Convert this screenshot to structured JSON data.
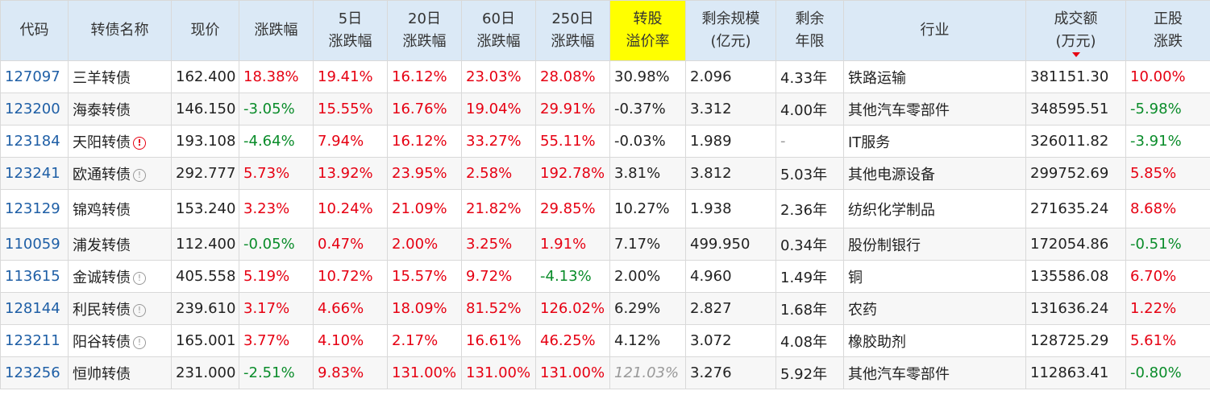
{
  "colors": {
    "up": "#e60012",
    "down": "#0a8c2a",
    "header_bg": "#dbe9f6",
    "highlight": "#ffff00",
    "code": "#1f5fa6"
  },
  "headers": [
    "代码",
    "转债名称",
    "现价",
    "涨跌幅",
    "5日\n涨跌幅",
    "20日\n涨跌幅",
    "60日\n涨跌幅",
    "250日\n涨跌幅",
    "转股\n溢价率",
    "剩余规模\n(亿元)",
    "剩余\n年限",
    "行业",
    "成交额\n(万元)",
    "正股\n涨跌"
  ],
  "rows": [
    {
      "code": "127097",
      "name": "三羊转债",
      "icon": "",
      "price": "162.400",
      "chg": "18.38%",
      "d5": "19.41%",
      "d20": "16.12%",
      "d60": "23.03%",
      "d250": "28.08%",
      "premium": "30.98%",
      "scale": "2.096",
      "years": "4.33年",
      "industry": "铁路运输",
      "turnover": "381151.30",
      "stock_chg": "10.00%"
    },
    {
      "code": "123200",
      "name": "海泰转债",
      "icon": "",
      "price": "146.150",
      "chg": "-3.05%",
      "d5": "15.55%",
      "d20": "16.76%",
      "d60": "19.04%",
      "d250": "29.91%",
      "premium": "-0.37%",
      "scale": "3.312",
      "years": "4.00年",
      "industry": "其他汽车零部件",
      "turnover": "348595.51",
      "stock_chg": "-5.98%"
    },
    {
      "code": "123184",
      "name": "天阳转债",
      "icon": "warn",
      "price": "193.108",
      "chg": "-4.64%",
      "d5": "7.94%",
      "d20": "16.12%",
      "d60": "33.27%",
      "d250": "55.11%",
      "premium": "-0.03%",
      "scale": "1.989",
      "years": "-",
      "industry": "IT服务",
      "turnover": "326011.82",
      "stock_chg": "-3.91%"
    },
    {
      "code": "123241",
      "name": "欧通转债",
      "icon": "info",
      "price": "292.777",
      "chg": "5.73%",
      "d5": "13.92%",
      "d20": "23.95%",
      "d60": "2.58%",
      "d250": "192.78%",
      "premium": "3.81%",
      "scale": "3.812",
      "years": "5.03年",
      "industry": "其他电源设备",
      "turnover": "299752.69",
      "stock_chg": "5.85%"
    },
    {
      "code": "123129",
      "name": "锦鸡转债",
      "icon": "",
      "price": "153.240",
      "chg": "3.23%",
      "d5": "10.24%",
      "d20": "21.09%",
      "d60": "21.82%",
      "d250": "29.85%",
      "premium": "10.27%",
      "scale": "1.938",
      "years": "2.36年",
      "industry": "纺织化学制品",
      "turnover": "271635.24",
      "stock_chg": "8.68%"
    },
    {
      "code": "110059",
      "name": "浦发转债",
      "icon": "",
      "price": "112.400",
      "chg": "-0.05%",
      "d5": "0.47%",
      "d20": "2.00%",
      "d60": "3.25%",
      "d250": "1.91%",
      "premium": "7.17%",
      "scale": "499.950",
      "years": "0.34年",
      "industry": "股份制银行",
      "turnover": "172054.86",
      "stock_chg": "-0.51%"
    },
    {
      "code": "113615",
      "name": "金诚转债",
      "icon": "info",
      "price": "405.558",
      "chg": "5.19%",
      "d5": "10.72%",
      "d20": "15.57%",
      "d60": "9.72%",
      "d250": "-4.13%",
      "premium": "2.00%",
      "scale": "4.960",
      "years": "1.49年",
      "industry": "铜",
      "turnover": "135586.08",
      "stock_chg": "6.70%"
    },
    {
      "code": "128144",
      "name": "利民转债",
      "icon": "info",
      "price": "239.610",
      "chg": "3.17%",
      "d5": "4.66%",
      "d20": "18.09%",
      "d60": "81.52%",
      "d250": "126.02%",
      "premium": "6.29%",
      "scale": "2.827",
      "years": "1.68年",
      "industry": "农药",
      "turnover": "131636.24",
      "stock_chg": "1.22%"
    },
    {
      "code": "123211",
      "name": "阳谷转债",
      "icon": "info",
      "price": "165.001",
      "chg": "3.77%",
      "d5": "4.10%",
      "d20": "2.17%",
      "d60": "16.61%",
      "d250": "46.25%",
      "premium": "4.12%",
      "scale": "3.072",
      "years": "4.08年",
      "industry": "橡胶助剂",
      "turnover": "128725.29",
      "stock_chg": "5.61%"
    },
    {
      "code": "123256",
      "name": "恒帅转债",
      "icon": "",
      "price": "231.000",
      "chg": "-2.51%",
      "d5": "9.83%",
      "d20": "131.00%",
      "d60": "131.00%",
      "d250": "131.00%",
      "premium": "121.03%",
      "scale": "3.276",
      "years": "5.92年",
      "industry": "其他汽车零部件",
      "turnover": "112863.41",
      "stock_chg": "-0.80%"
    }
  ]
}
